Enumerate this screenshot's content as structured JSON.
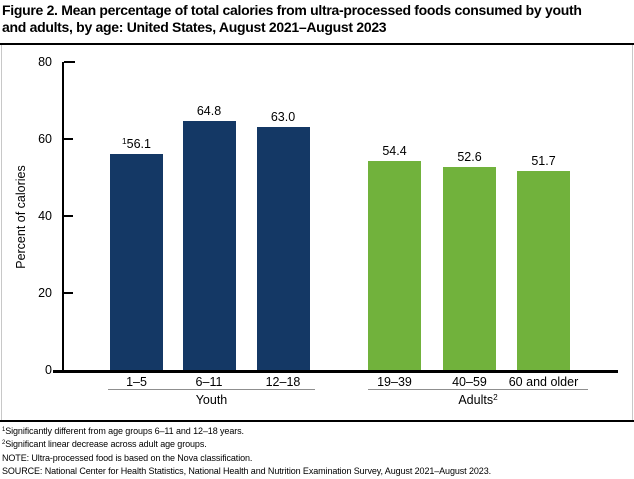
{
  "title": {
    "line1": "Figure 2. Mean percentage of total calories from ultra-processed foods consumed by youth",
    "line2": "and adults, by age: United States, August 2021–August 2023"
  },
  "chart_data": {
    "type": "bar",
    "title": "Figure 2. Mean percentage of total calories from ultra-processed foods consumed by youth and adults, by age: United States, August 2021–August 2023",
    "xlabel": "",
    "ylabel": "Percent of calories",
    "ylim": [
      0,
      80
    ],
    "yticks": [
      0,
      20,
      40,
      60,
      80
    ],
    "grid": false,
    "legend": "none",
    "groups": [
      {
        "label": "Youth",
        "label_sup": "",
        "color": "#143865",
        "bars": [
          {
            "category": "1–5",
            "value": 56.1,
            "label": "56.1",
            "sup": "1"
          },
          {
            "category": "6–11",
            "value": 64.8,
            "label": "64.8",
            "sup": ""
          },
          {
            "category": "12–18",
            "value": 63.0,
            "label": "63.0",
            "sup": ""
          }
        ]
      },
      {
        "label": "Adults",
        "label_sup": "2",
        "color": "#71b23c",
        "bars": [
          {
            "category": "19–39",
            "value": 54.4,
            "label": "54.4",
            "sup": ""
          },
          {
            "category": "40–59",
            "value": 52.6,
            "label": "52.6",
            "sup": ""
          },
          {
            "category": "60 and older",
            "value": 51.7,
            "label": "51.7",
            "sup": ""
          }
        ]
      }
    ]
  },
  "footnotes": [
    {
      "sup": "1",
      "text": "Significantly different from age groups 6–11 and 12–18 years."
    },
    {
      "sup": "2",
      "text": "Significant linear decrease across adult age groups."
    },
    {
      "sup": "",
      "text": "NOTE: Ultra-processed food is based on the Nova classification."
    },
    {
      "sup": "",
      "text": "SOURCE: National Center for Health Statistics, National Health and Nutrition Examination Survey, August 2021–August 2023."
    }
  ],
  "colors": {
    "youth_bar": "#143865",
    "adults_bar": "#71b23c",
    "axis": "#000000",
    "panel_border": "#c8c8c8",
    "group_rule": "#8f8f8f",
    "background": "#ffffff"
  }
}
